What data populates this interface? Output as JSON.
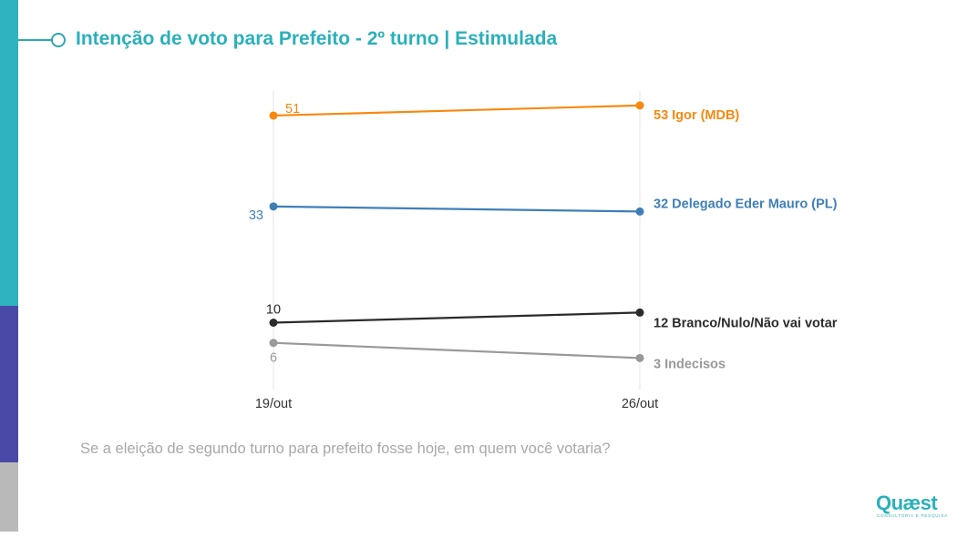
{
  "header": {
    "title": "Intenção de voto para Prefeito - 2º turno | Estimulada"
  },
  "question": "Se a eleição de segundo turno para prefeito fosse hoje, em quem você votaria?",
  "brand": {
    "name": "Quæst",
    "tagline": "CONSULTORIA E PESQUISA",
    "color": "#2ab0bb"
  },
  "chart_data": {
    "type": "line",
    "title": "Intenção de voto para Prefeito - 2º turno | Estimulada",
    "xlabel": "",
    "ylabel": "",
    "categories": [
      "19/out",
      "26/out"
    ],
    "ylim": [
      0,
      60
    ],
    "grid": false,
    "series": [
      {
        "name": "Igor (MDB)",
        "values": [
          51,
          53
        ],
        "color": "#f7890f",
        "end_label": "53 Igor (MDB)"
      },
      {
        "name": "Delegado Eder Mauro (PL)",
        "values": [
          33,
          32
        ],
        "color": "#3f7fb8",
        "end_label": "32 Delegado Eder Mauro (PL)"
      },
      {
        "name": "Branco/Nulo/Não vai votar",
        "values": [
          10,
          12
        ],
        "color": "#2b2b2b",
        "end_label": "12 Branco/Nulo/Não vai votar"
      },
      {
        "name": "Indecisos",
        "values": [
          6,
          3
        ],
        "color": "#999999",
        "end_label": "3 Indecisos"
      }
    ]
  }
}
